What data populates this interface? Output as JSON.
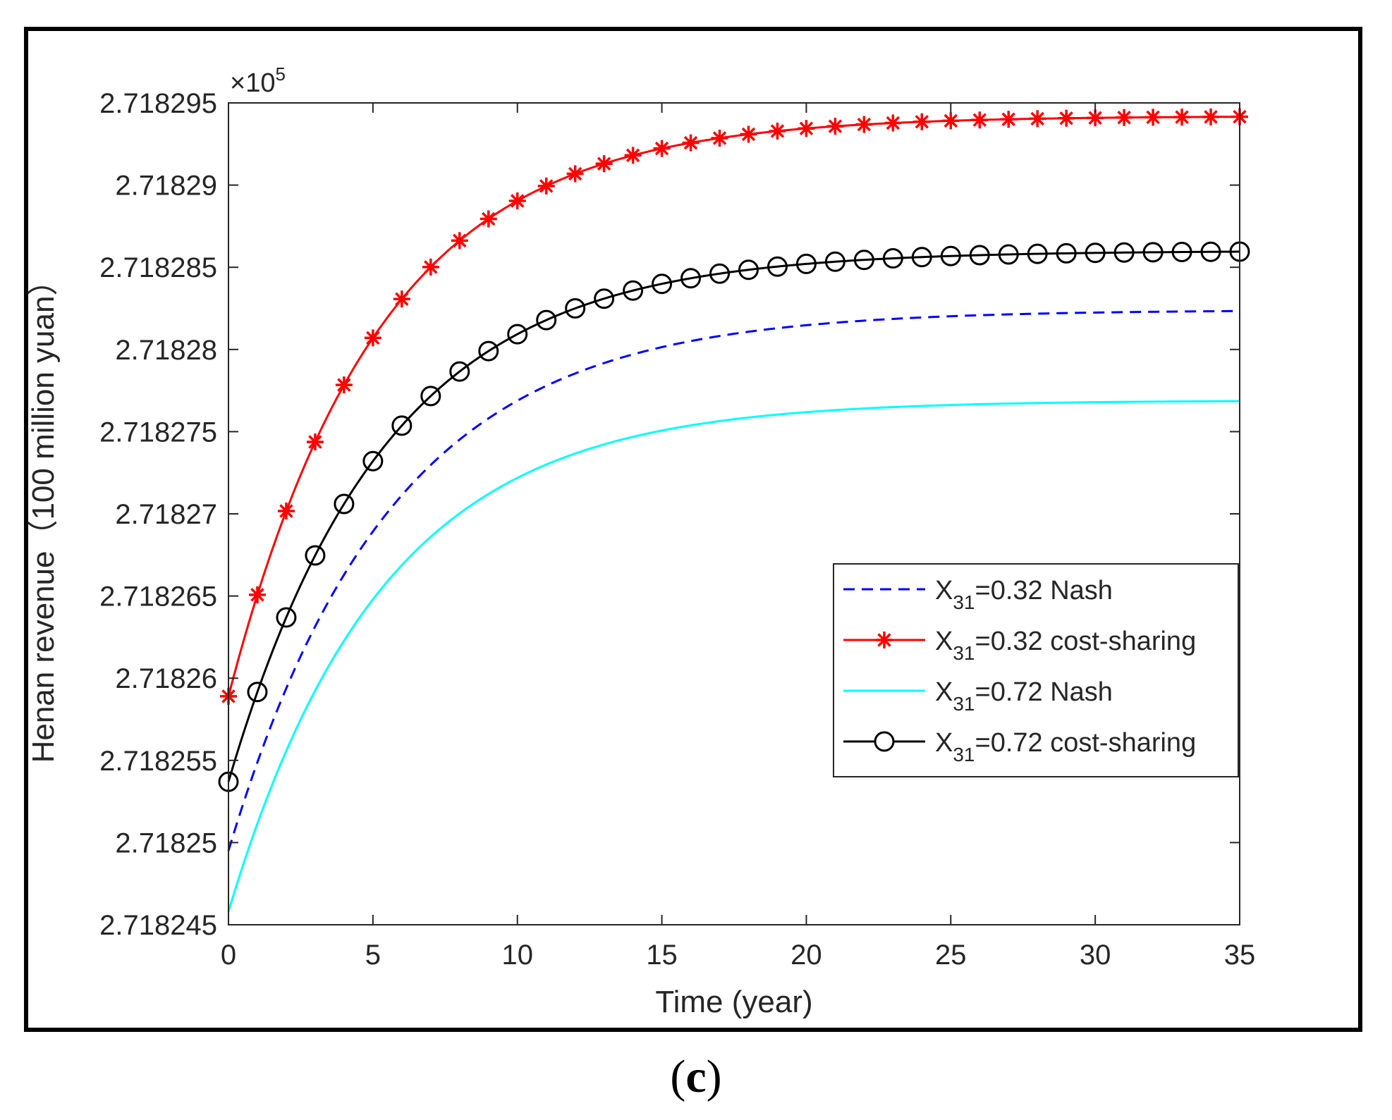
{
  "chart_data": {
    "type": "line",
    "title": "",
    "xlabel": "Time (year)",
    "ylabel": "Henan revenue（100 million yuan）",
    "y_exponent_label": "×10",
    "y_exponent_power": "5",
    "xlim": [
      0,
      35
    ],
    "ylim": [
      2.718245,
      2.718295
    ],
    "x_ticks": [
      0,
      5,
      10,
      15,
      20,
      25,
      30,
      35
    ],
    "x_tick_labels": [
      "0",
      "5",
      "10",
      "15",
      "20",
      "25",
      "30",
      "35"
    ],
    "y_ticks": [
      2.718245,
      2.71825,
      2.718255,
      2.71826,
      2.718265,
      2.71827,
      2.718275,
      2.71828,
      2.718285,
      2.71829,
      2.718295
    ],
    "y_tick_labels": [
      "2.718245",
      "2.71825",
      "2.718255",
      "2.71826",
      "2.718265",
      "2.71827",
      "2.718275",
      "2.71828",
      "2.718285",
      "2.71829",
      "2.718295"
    ],
    "grid": false,
    "legend_position": "center-right",
    "series": [
      {
        "name": "X31=0.32 Nash",
        "label_main": "X",
        "label_sub": "31",
        "label_rest": "=0.32 Nash",
        "color": "#0000ff",
        "style": "dashed",
        "marker": "none",
        "y0": 2.7182495,
        "y_end": 2.7182824,
        "tau": 5.6
      },
      {
        "name": "X31=0.32 cost-sharing",
        "label_main": "X",
        "label_sub": "31",
        "label_rest": "=0.32 cost-sharing",
        "color": "#ff0000",
        "style": "solid",
        "marker": "star",
        "y0": 2.7182589,
        "y_end": 2.7182942,
        "tau": 5.2
      },
      {
        "name": "X31=0.72 Nash",
        "label_main": "X",
        "label_sub": "31",
        "label_rest": "=0.72 Nash",
        "color": "#00ffff",
        "style": "solid",
        "marker": "none",
        "y0": 2.7182458,
        "y_end": 2.7182769,
        "tau": 5.3
      },
      {
        "name": "X31=0.72 cost-sharing",
        "label_main": "X",
        "label_sub": "31",
        "label_rest": "=0.72 cost-sharing",
        "color": "#000000",
        "style": "solid",
        "marker": "circle",
        "y0": 2.7182537,
        "y_end": 2.718286,
        "tau": 5.4
      }
    ]
  },
  "caption": {
    "open": "(",
    "letter": "c",
    "close": ")"
  }
}
